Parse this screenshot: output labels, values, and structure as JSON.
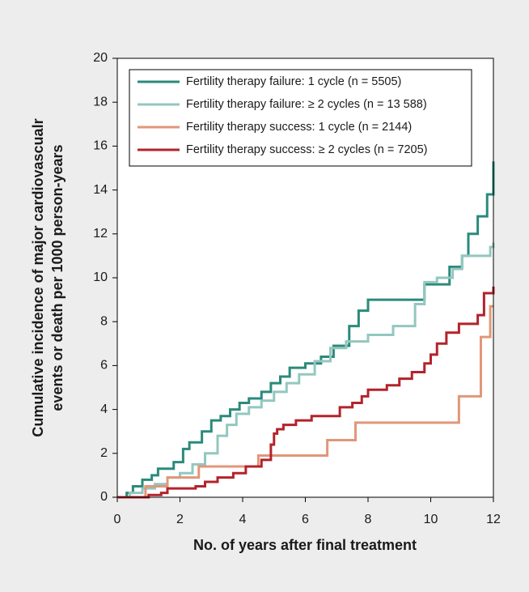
{
  "chart_data": {
    "type": "step",
    "ylabel": [
      "Cumulative incidence of major cardiovascualr",
      "events or death per 1000 person-years"
    ],
    "xlabel": "No. of years after final treatment",
    "xlim": [
      0,
      12
    ],
    "xticks": [
      0,
      2,
      4,
      6,
      8,
      10,
      12
    ],
    "ylim": [
      0,
      20
    ],
    "yticks": [
      0,
      2,
      4,
      6,
      8,
      10,
      12,
      14,
      16,
      18,
      20
    ],
    "legend": "top-left",
    "series": [
      {
        "name": "Fertility therapy failure: 1 cycle (n = 5505)",
        "color": "#2b8a7b",
        "x": [
          0,
          0.3,
          0.5,
          0.8,
          1.1,
          1.3,
          1.8,
          2.1,
          2.3,
          2.7,
          3.0,
          3.3,
          3.6,
          3.9,
          4.2,
          4.6,
          4.9,
          5.2,
          5.5,
          6.0,
          6.5,
          6.9,
          7.4,
          7.7,
          8.0,
          9.8,
          10.6,
          11.0,
          11.2,
          11.5,
          11.8,
          12.0
        ],
        "values": [
          0,
          0.2,
          0.5,
          0.8,
          1.0,
          1.3,
          1.6,
          2.2,
          2.5,
          3.0,
          3.5,
          3.7,
          4.0,
          4.3,
          4.5,
          4.8,
          5.2,
          5.5,
          5.9,
          6.1,
          6.4,
          6.9,
          7.8,
          8.5,
          9.0,
          9.7,
          10.5,
          11.0,
          12.0,
          12.8,
          13.8,
          15.3
        ]
      },
      {
        "name": "Fertility therapy failure: ≥ 2 cycles (n = 13 588)",
        "color": "#93c7c0",
        "x": [
          0,
          0.4,
          0.8,
          1.2,
          1.6,
          2.0,
          2.4,
          2.8,
          3.2,
          3.5,
          3.8,
          4.2,
          4.6,
          5.0,
          5.4,
          5.8,
          6.3,
          6.8,
          7.3,
          8.0,
          8.8,
          9.5,
          9.8,
          10.2,
          10.7,
          11.0,
          11.9,
          12.0
        ],
        "values": [
          0,
          0.2,
          0.4,
          0.6,
          0.9,
          1.1,
          1.5,
          2.0,
          2.8,
          3.3,
          3.8,
          4.1,
          4.4,
          4.8,
          5.2,
          5.6,
          6.2,
          6.8,
          7.1,
          7.4,
          7.8,
          8.8,
          9.8,
          10.0,
          10.4,
          11.0,
          11.4,
          11.6
        ]
      },
      {
        "name": "Fertility therapy success: 1 cycle (n = 2144)",
        "color": "#e0977a",
        "x": [
          0,
          0.9,
          1.6,
          2.6,
          4.5,
          6.7,
          7.6,
          10.9,
          11.6,
          11.9,
          12.0
        ],
        "values": [
          0,
          0.5,
          0.9,
          1.4,
          1.9,
          2.6,
          3.4,
          4.6,
          7.3,
          8.7,
          8.7
        ]
      },
      {
        "name": "Fertility therapy success: ≥ 2 cycles (n = 7205)",
        "color": "#b3232b",
        "x": [
          0,
          1.0,
          1.4,
          1.6,
          2.5,
          2.8,
          3.2,
          3.7,
          4.1,
          4.6,
          4.9,
          5.0,
          5.1,
          5.3,
          5.7,
          6.2,
          7.1,
          7.5,
          7.8,
          8.0,
          8.6,
          9.0,
          9.4,
          9.8,
          10.0,
          10.2,
          10.5,
          10.9,
          11.5,
          11.7,
          12.0
        ],
        "values": [
          0,
          0.1,
          0.2,
          0.4,
          0.5,
          0.7,
          0.9,
          1.1,
          1.4,
          1.7,
          2.4,
          2.9,
          3.1,
          3.3,
          3.5,
          3.7,
          4.1,
          4.3,
          4.6,
          4.9,
          5.1,
          5.4,
          5.7,
          6.1,
          6.5,
          7.0,
          7.5,
          7.9,
          8.3,
          9.3,
          9.6
        ]
      }
    ]
  }
}
